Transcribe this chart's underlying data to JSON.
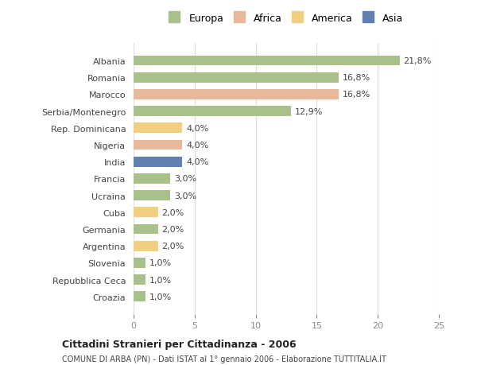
{
  "countries": [
    "Albania",
    "Romania",
    "Marocco",
    "Serbia/Montenegro",
    "Rep. Dominicana",
    "Nigeria",
    "India",
    "Francia",
    "Ucraina",
    "Cuba",
    "Germania",
    "Argentina",
    "Slovenia",
    "Repubblica Ceca",
    "Croazia"
  ],
  "values": [
    21.8,
    16.8,
    16.8,
    12.9,
    4.0,
    4.0,
    4.0,
    3.0,
    3.0,
    2.0,
    2.0,
    2.0,
    1.0,
    1.0,
    1.0
  ],
  "labels": [
    "21,8%",
    "16,8%",
    "16,8%",
    "12,9%",
    "4,0%",
    "4,0%",
    "4,0%",
    "3,0%",
    "3,0%",
    "2,0%",
    "2,0%",
    "2,0%",
    "1,0%",
    "1,0%",
    "1,0%"
  ],
  "continents": [
    "Europa",
    "Europa",
    "Africa",
    "Europa",
    "America",
    "Africa",
    "Asia",
    "Europa",
    "Europa",
    "America",
    "Europa",
    "America",
    "Europa",
    "Europa",
    "Europa"
  ],
  "colors": {
    "Europa": "#a8c08a",
    "Africa": "#e8b89a",
    "America": "#f0d080",
    "Asia": "#6080b0"
  },
  "legend_order": [
    "Europa",
    "Africa",
    "America",
    "Asia"
  ],
  "title_bold": "Cittadini Stranieri per Cittadinanza - 2006",
  "subtitle": "COMUNE DI ARBA (PN) - Dati ISTAT al 1° gennaio 2006 - Elaborazione TUTTITALIA.IT",
  "xlim": [
    0,
    25
  ],
  "xticks": [
    0,
    5,
    10,
    15,
    20,
    25
  ],
  "background_color": "#ffffff",
  "grid_color": "#dddddd"
}
